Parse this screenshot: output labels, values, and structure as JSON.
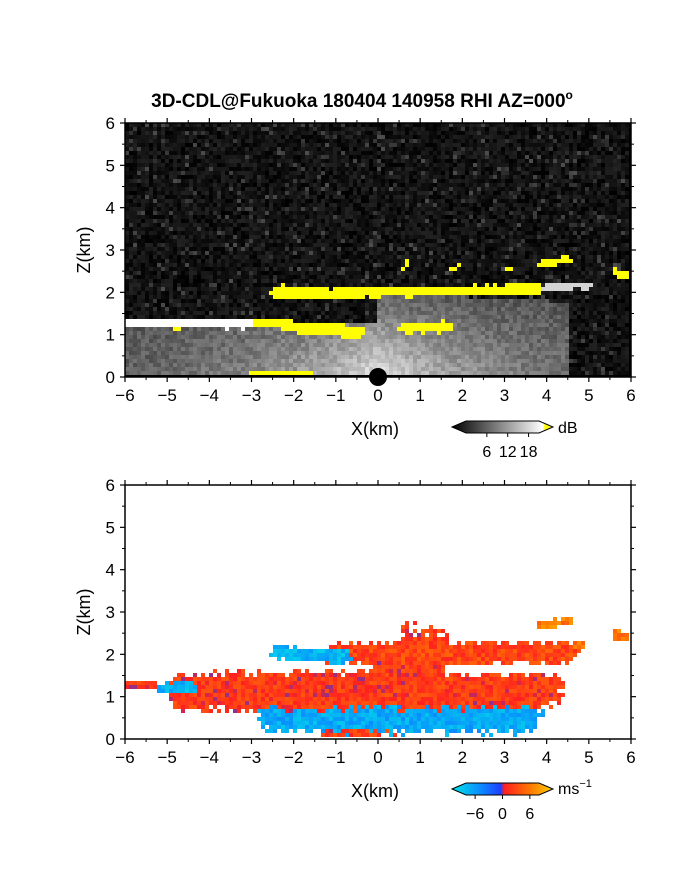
{
  "chart_data": [
    {
      "type": "heatmap",
      "title": "3D-CDL@Fukuoka 180404 140958 RHI AZ=000",
      "title_superscript": "o",
      "xlabel": "X(km)",
      "ylabel": "Z(km)",
      "xlim": [
        -6,
        6
      ],
      "ylim": [
        0,
        6
      ],
      "xticks": [
        "-6",
        "-5",
        "-4",
        "-3",
        "-2",
        "-1",
        "0",
        "1",
        "2",
        "3",
        "4",
        "5",
        "6"
      ],
      "yticks": [
        "0",
        "1",
        "2",
        "3",
        "4",
        "5",
        "6"
      ],
      "background": "noise",
      "colorbar": {
        "unit": "dB",
        "unit_superscript": "",
        "ticks": [
          "6",
          "12",
          "18"
        ],
        "tick_values": [
          6,
          12,
          18
        ],
        "range": [
          0,
          21
        ],
        "colors": [
          "#000000",
          "#ffffff",
          "#ffff00"
        ]
      },
      "layers": [
        {
          "from": [
            -6,
            1.28
          ],
          "to": [
            -3.0,
            1.25
          ],
          "th": 0.1,
          "value": 18
        },
        {
          "from": [
            -5.0,
            1.25
          ],
          "to": [
            -2.2,
            1.28
          ],
          "th": 0.1,
          "value": 19
        },
        {
          "from": [
            -2.2,
            1.22
          ],
          "to": [
            -0.4,
            1.05
          ],
          "th": 0.13,
          "value": 19
        },
        {
          "from": [
            0.6,
            1.18
          ],
          "to": [
            1.7,
            1.18
          ],
          "th": 0.12,
          "value": 19
        },
        {
          "from": [
            -2.4,
            2.0
          ],
          "to": [
            -1.2,
            1.98
          ],
          "th": 0.15,
          "value": 19
        },
        {
          "from": [
            -1.2,
            1.98
          ],
          "to": [
            3.8,
            2.08
          ],
          "th": 0.12,
          "value": 19
        },
        {
          "from": [
            3.8,
            2.08
          ],
          "to": [
            5.0,
            2.18
          ],
          "th": 0.08,
          "value": 15
        },
        {
          "from": [
            3.9,
            2.68
          ],
          "to": [
            4.5,
            2.78
          ],
          "th": 0.09,
          "value": 19
        },
        {
          "from": [
            5.7,
            2.45
          ],
          "to": [
            6.0,
            2.38
          ],
          "th": 0.12,
          "value": 19
        },
        {
          "from": [
            -3.0,
            0.1
          ],
          "to": [
            -1.5,
            0.05
          ],
          "th": 0.05,
          "value": 19
        },
        {
          "from": [
            0.6,
            2.55
          ],
          "to": [
            0.7,
            2.72
          ],
          "th": 0.05,
          "value": 19
        },
        {
          "from": [
            1.7,
            2.55
          ],
          "to": [
            1.9,
            2.62
          ],
          "th": 0.05,
          "value": 19
        },
        {
          "from": [
            3.0,
            2.52
          ],
          "to": [
            3.2,
            2.6
          ],
          "th": 0.05,
          "value": 19
        }
      ],
      "fan": {
        "x": [
          -6,
          4.5
        ],
        "z": [
          0,
          2.0
        ],
        "value": 12
      }
    },
    {
      "type": "heatmap",
      "title": "",
      "xlabel": "X(km)",
      "ylabel": "Z(km)",
      "xlim": [
        -6,
        6
      ],
      "ylim": [
        0,
        6
      ],
      "xticks": [
        "-6",
        "-5",
        "-4",
        "-3",
        "-2",
        "-1",
        "0",
        "1",
        "2",
        "3",
        "4",
        "5",
        "6"
      ],
      "yticks": [
        "0",
        "1",
        "2",
        "3",
        "4",
        "5",
        "6"
      ],
      "background": "white",
      "colorbar": {
        "unit": "ms",
        "unit_superscript": "-1",
        "ticks": [
          "-6",
          "0",
          "6"
        ],
        "tick_values": [
          -6,
          0,
          6
        ],
        "range": [
          -8,
          8
        ],
        "colors": [
          "#00e5e5",
          "#1e50ff",
          "#ff2020",
          "#ffd000"
        ]
      },
      "layers": [
        {
          "from": [
            -6,
            1.28
          ],
          "to": [
            -5.3,
            1.28
          ],
          "th": 0.08,
          "value": 1.5
        },
        {
          "from": [
            -5.1,
            1.2
          ],
          "to": [
            -4.4,
            1.22
          ],
          "th": 0.12,
          "value": -5.5
        },
        {
          "from": [
            -4.6,
            1.1
          ],
          "to": [
            0.2,
            1.15
          ],
          "th": 0.42,
          "value": 1.5
        },
        {
          "from": [
            -2.4,
            2.05
          ],
          "to": [
            -0.8,
            1.95
          ],
          "th": 0.15,
          "value": -5.5
        },
        {
          "from": [
            -1.0,
            2.0
          ],
          "to": [
            4.5,
            2.05
          ],
          "th": 0.24,
          "value": 2.0
        },
        {
          "from": [
            0.3,
            1.1
          ],
          "to": [
            4.0,
            1.15
          ],
          "th": 0.38,
          "value": 1.5
        },
        {
          "from": [
            -2.5,
            0.55
          ],
          "to": [
            3.5,
            0.55
          ],
          "th": 0.38,
          "value": -5.0
        },
        {
          "from": [
            -1.0,
            0.4
          ],
          "to": [
            2.2,
            0.65
          ],
          "th": 0.3,
          "value": 1.5
        },
        {
          "from": [
            -0.7,
            0.1
          ],
          "to": [
            1.0,
            1.9
          ],
          "th": 0.7,
          "value": 1.5
        },
        {
          "from": [
            2.5,
            2.08
          ],
          "to": [
            4.8,
            2.18
          ],
          "th": 0.1,
          "value": 4.2
        },
        {
          "from": [
            3.8,
            2.68
          ],
          "to": [
            4.5,
            2.78
          ],
          "th": 0.09,
          "value": 4.5
        },
        {
          "from": [
            5.7,
            2.45
          ],
          "to": [
            6.0,
            2.38
          ],
          "th": 0.12,
          "value": 4.5
        },
        {
          "from": [
            0.6,
            2.55
          ],
          "to": [
            0.7,
            2.72
          ],
          "th": 0.06,
          "value": 1.5
        }
      ]
    }
  ]
}
